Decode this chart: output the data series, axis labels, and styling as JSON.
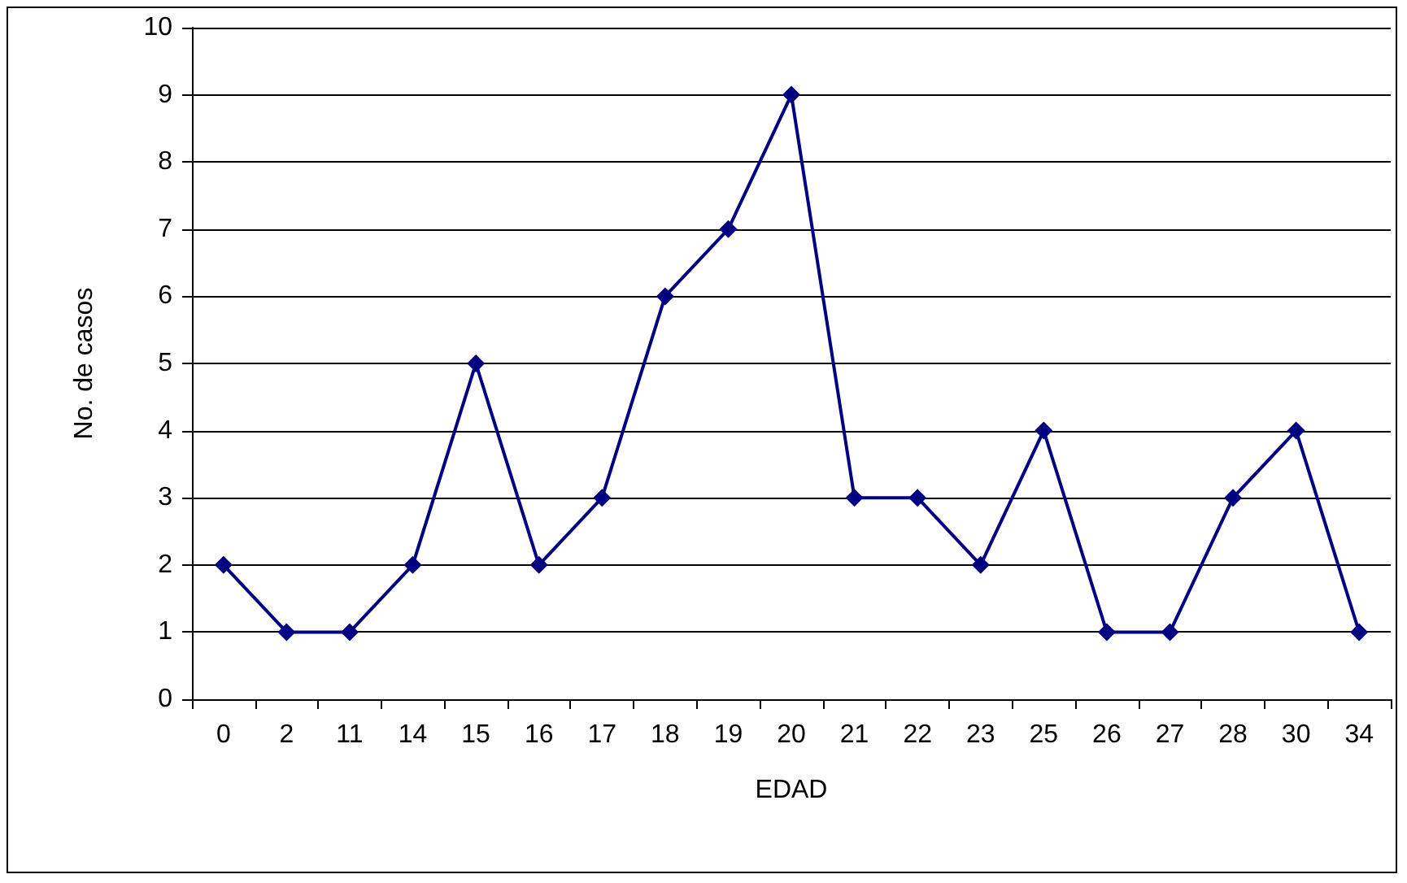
{
  "chart_data": {
    "type": "line",
    "xlabel": "EDAD",
    "ylabel": "No. de casos",
    "categories": [
      "0",
      "2",
      "11",
      "14",
      "15",
      "16",
      "17",
      "18",
      "19",
      "20",
      "21",
      "22",
      "23",
      "25",
      "26",
      "27",
      "28",
      "30",
      "34"
    ],
    "series": [
      {
        "color": "#000080",
        "values": [
          2,
          1,
          1,
          2,
          5,
          2,
          3,
          6,
          7,
          9,
          3,
          3,
          2,
          4,
          1,
          1,
          3,
          4,
          1
        ]
      }
    ],
    "ylim": [
      0,
      10
    ],
    "yticks": [
      0,
      1,
      2,
      3,
      4,
      5,
      6,
      7,
      8,
      9,
      10
    ],
    "grid": "y",
    "marker": "diamond",
    "line_style": "solid"
  }
}
